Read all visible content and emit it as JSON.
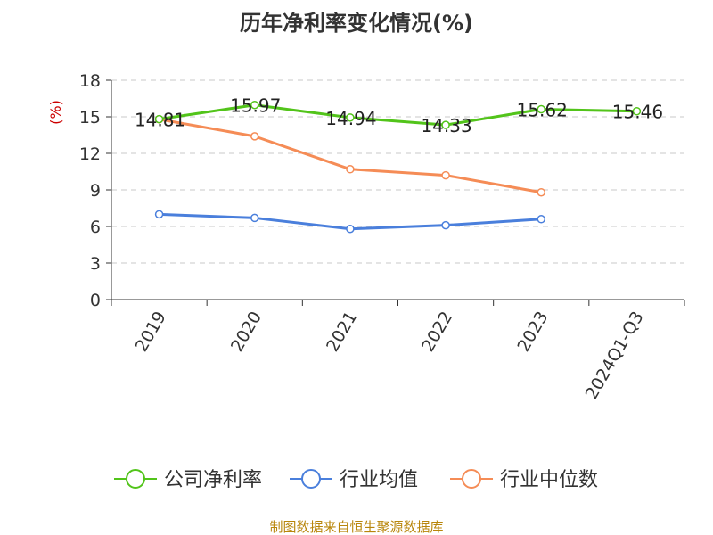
{
  "chart_data": {
    "type": "line",
    "title": "历年净利率变化情况(%)",
    "ylabel": "(%)",
    "categories": [
      "2019",
      "2020",
      "2021",
      "2022",
      "2023",
      "2024Q1-Q3"
    ],
    "ylim": [
      0,
      18
    ],
    "yticks": [
      0,
      3,
      6,
      9,
      12,
      15,
      18
    ],
    "grid": true,
    "legend_position": "bottom",
    "series": [
      {
        "name": "公司净利率",
        "color": "#52c41a",
        "values": [
          14.81,
          15.97,
          14.94,
          14.33,
          15.62,
          15.46
        ],
        "labels": [
          "14.81",
          "15.97",
          "14.94",
          "14.33",
          "15.62",
          "15.46"
        ]
      },
      {
        "name": "行业均值",
        "color": "#4a7fdc",
        "values": [
          7.0,
          6.7,
          5.8,
          6.1,
          6.6,
          null
        ]
      },
      {
        "name": "行业中位数",
        "color": "#f58c56",
        "values": [
          14.8,
          13.4,
          10.7,
          10.2,
          8.8,
          null
        ]
      }
    ]
  },
  "source": "制图数据来自恒生聚源数据库"
}
